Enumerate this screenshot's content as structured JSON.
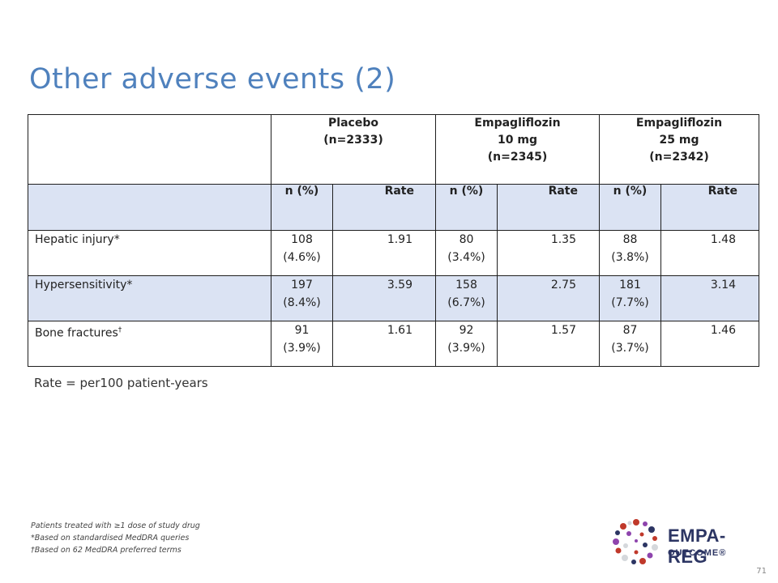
{
  "slide": {
    "title": "Other adverse events (2)",
    "page_number": "71"
  },
  "table": {
    "groups": [
      {
        "line1": "Placebo",
        "line2": "(n=2333)",
        "line3": ""
      },
      {
        "line1": "Empagliflozin",
        "line2": "10 mg",
        "line3": "(n=2345)"
      },
      {
        "line1": "Empagliflozin",
        "line2": "25 mg",
        "line3": "(n=2342)"
      }
    ],
    "subheaders": [
      "n (%)",
      "Rate",
      "n (%)",
      "Rate",
      "n (%)",
      "Rate"
    ],
    "rows": [
      {
        "label": "Hepatic injury*",
        "cells": [
          {
            "n": "108",
            "pct": "(4.6%)",
            "rate": "1.91"
          },
          {
            "n": "80",
            "pct": "(3.4%)",
            "rate": "1.35"
          },
          {
            "n": "88",
            "pct": "(3.8%)",
            "rate": "1.48"
          }
        ]
      },
      {
        "label": "Hypersensitivity*",
        "cells": [
          {
            "n": "197",
            "pct": "(8.4%)",
            "rate": "3.59"
          },
          {
            "n": "158",
            "pct": "(6.7%)",
            "rate": "2.75"
          },
          {
            "n": "181",
            "pct": "(7.7%)",
            "rate": "3.14"
          }
        ]
      },
      {
        "label": "Bone fractures",
        "label_sup": "†",
        "cells": [
          {
            "n": "91",
            "pct": "(3.9%)",
            "rate": "1.61"
          },
          {
            "n": "92",
            "pct": "(3.9%)",
            "rate": "1.57"
          },
          {
            "n": "87",
            "pct": "(3.7%)",
            "rate": "1.46"
          }
        ]
      }
    ]
  },
  "rate_note": "Rate = per100 patient-years",
  "footnotes": [
    "Patients treated with ≥1 dose of study drug",
    "*Based on standardised MedDRA queries",
    "†Based on 62 MedDRA preferred terms"
  ],
  "logo": {
    "text1": "EMPA-REG",
    "text2": "OUTCOME®",
    "colors": [
      "#c0392b",
      "#8e44ad",
      "#2c3563",
      "#d5d8dc"
    ]
  }
}
